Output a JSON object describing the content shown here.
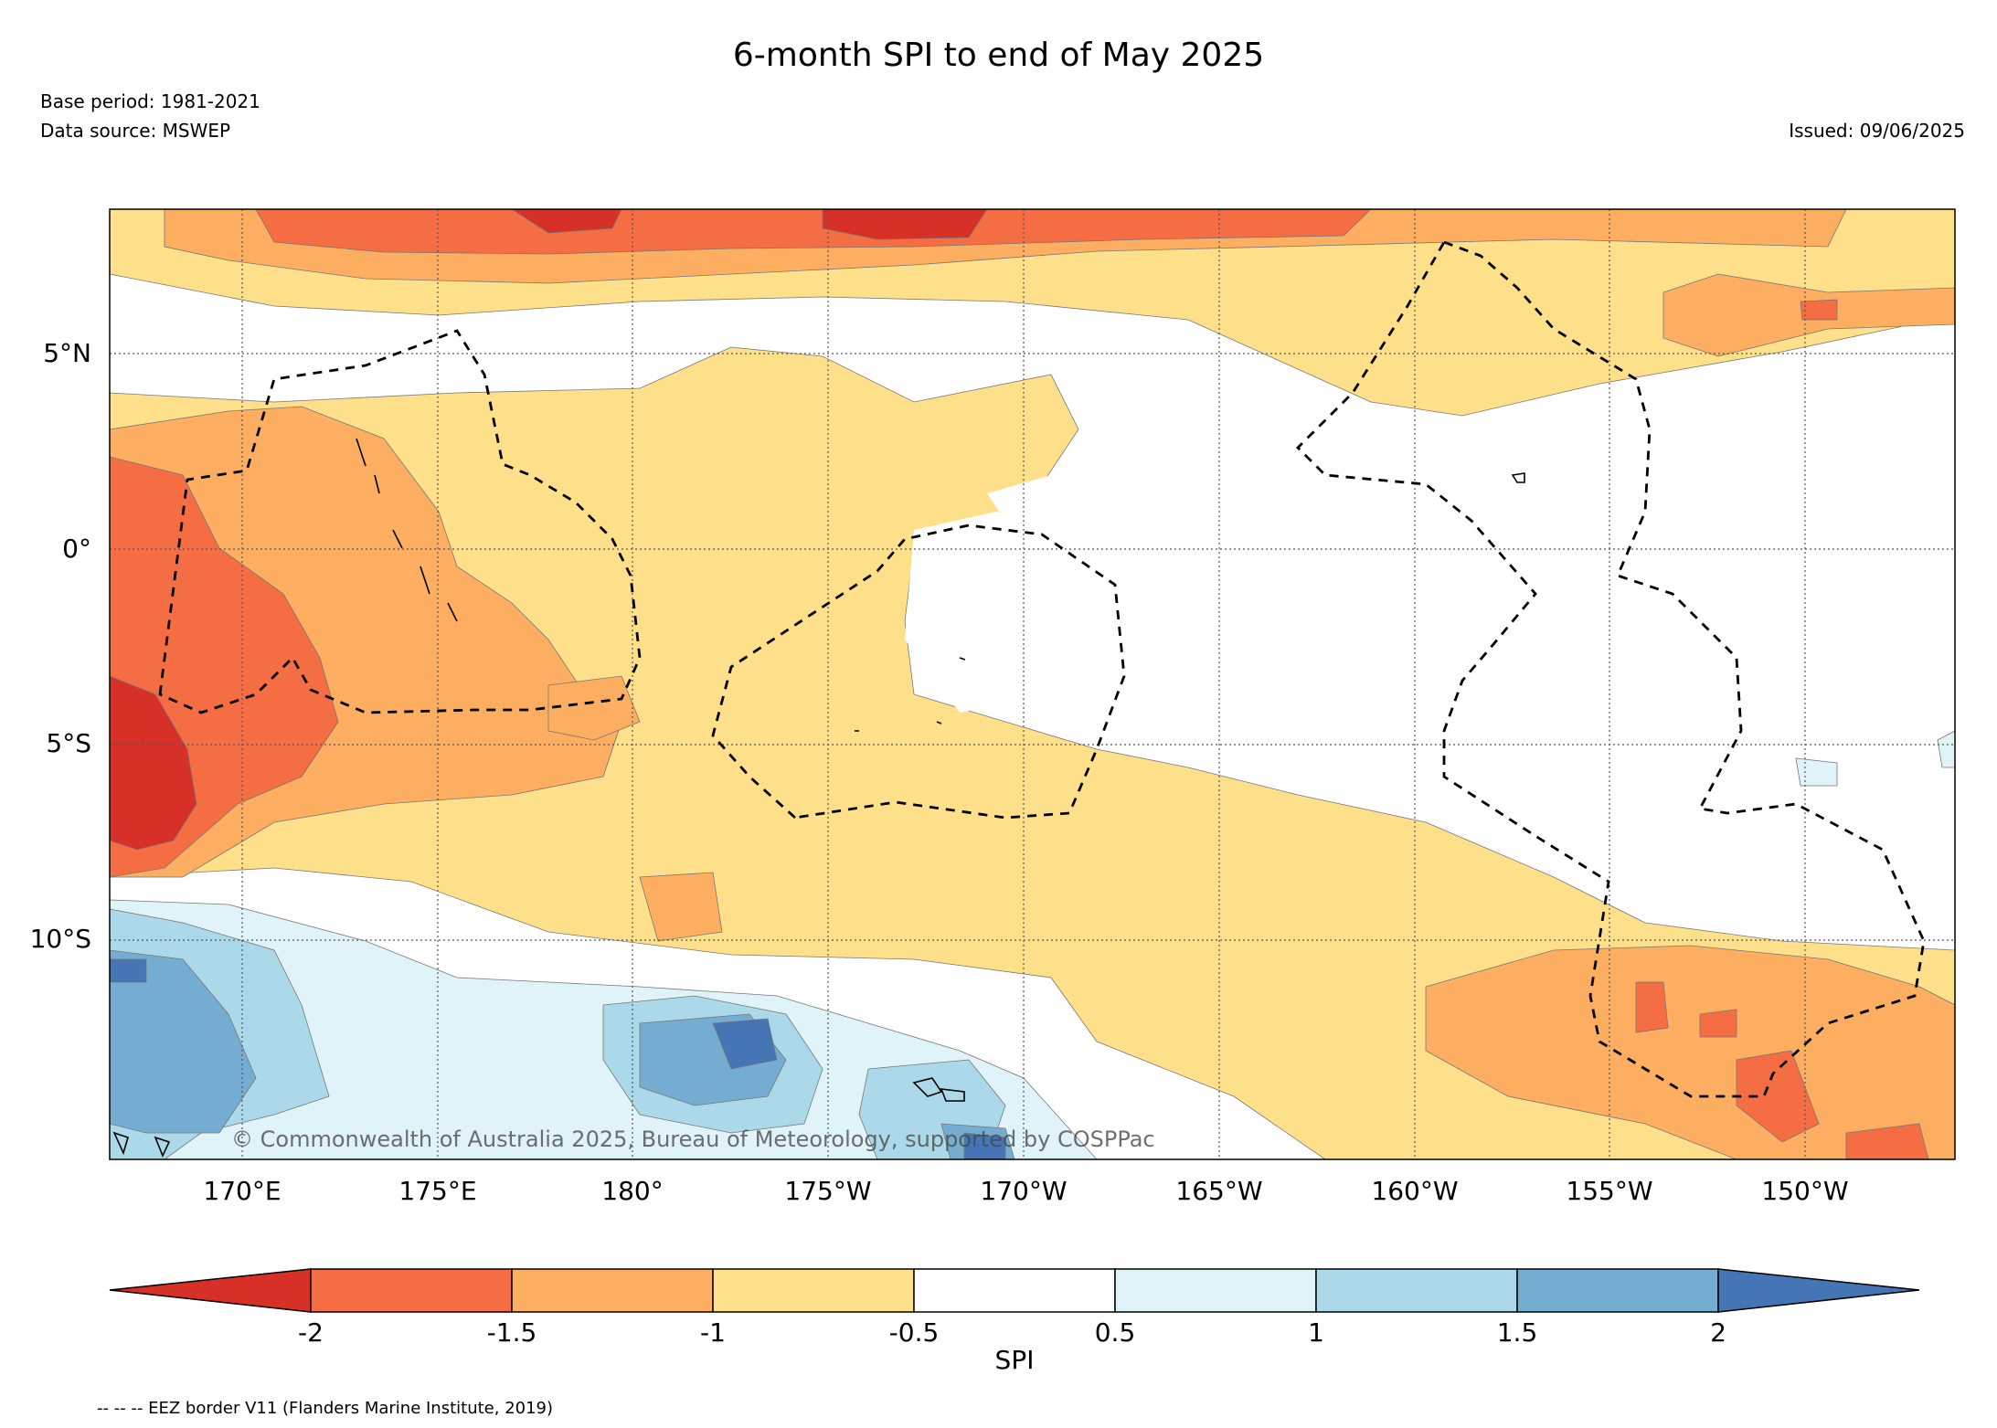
{
  "title": "6-month SPI to end of May 2025",
  "base_period": "Base period: 1981-2021",
  "data_source": "Data source: MSWEP",
  "issued": "Issued: 09/06/2025",
  "credit": "© Commonwealth of Australia 2025, Bureau of Meteorology, supported by COSPPac",
  "lat_labels": [
    "5°N",
    "0°",
    "5°S",
    "10°S"
  ],
  "lon_labels": [
    "170°E",
    "175°E",
    "180°",
    "175°W",
    "170°W",
    "165°W",
    "160°W",
    "155°W",
    "150°W"
  ],
  "colorbar": {
    "label": "SPI",
    "ticks": [
      "-2",
      "-1.5",
      "-1",
      "-0.5",
      "0.5",
      "1",
      "1.5",
      "2"
    ],
    "colors": {
      "below_-2": "#d73027",
      "-2_-1.5": "#f46d43",
      "-1.5_-1": "#fdae61",
      "-1_-0.5": "#fee08b",
      "-0.5_0.5": "#ffffff",
      "0.5_1": "#e0f3f8",
      "1_1.5": "#abd9e9",
      "1.5_2": "#74add1",
      "above_2": "#4575b4"
    }
  },
  "eez_legend": "-- -- -- EEZ border V11 (Flanders Marine Institute, 2019)"
}
